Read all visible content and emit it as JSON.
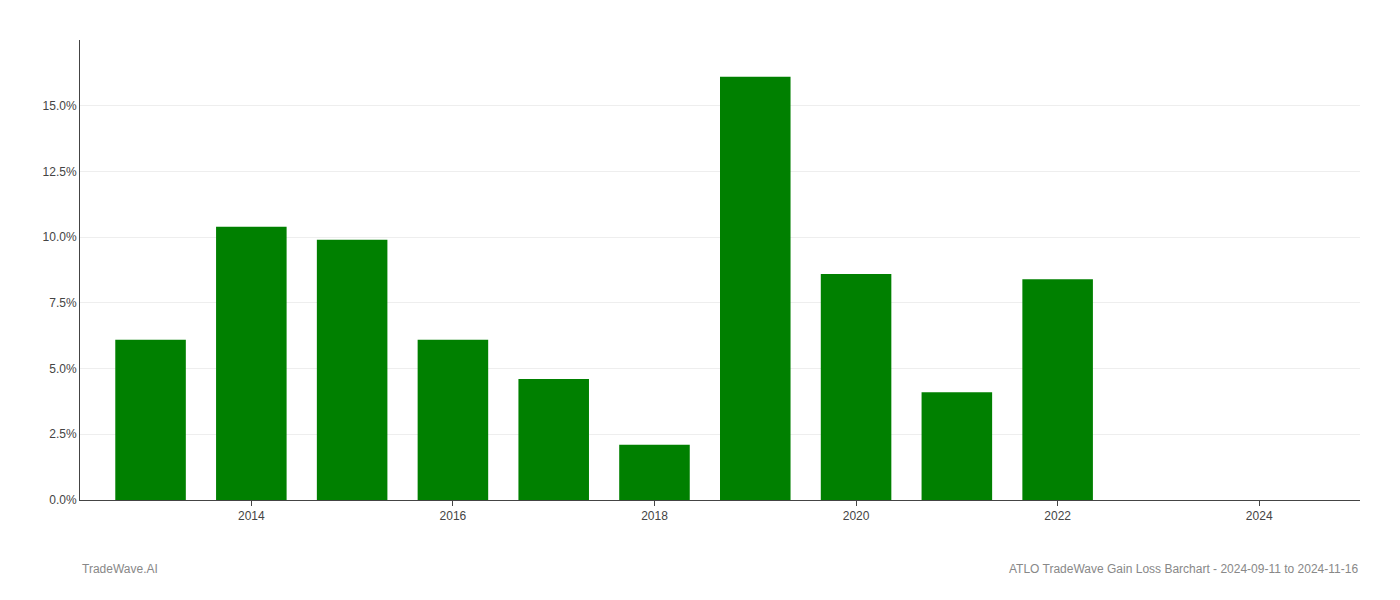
{
  "chart_data": {
    "type": "bar",
    "x": [
      2013,
      2014,
      2015,
      2016,
      2017,
      2018,
      2019,
      2020,
      2021,
      2022
    ],
    "values": [
      0.061,
      0.104,
      0.099,
      0.061,
      0.046,
      0.021,
      0.161,
      0.086,
      0.041,
      0.084
    ],
    "color": "#008000",
    "xlim": [
      2012.3,
      2025.0
    ],
    "xticks": [
      2014,
      2016,
      2018,
      2020,
      2022,
      2024
    ],
    "ylim": [
      0,
      0.175
    ],
    "yticks": [
      {
        "value": 0.0,
        "label": "0.0%"
      },
      {
        "value": 0.025,
        "label": "2.5%"
      },
      {
        "value": 0.05,
        "label": "5.0%"
      },
      {
        "value": 0.075,
        "label": "7.5%"
      },
      {
        "value": 0.1,
        "label": "10.0%"
      },
      {
        "value": 0.125,
        "label": "12.5%"
      },
      {
        "value": 0.15,
        "label": "15.0%"
      }
    ],
    "grid": "y",
    "annotations": [
      {
        "text": "TradeWave.AI"
      },
      {
        "text": "ATLO TradeWave Gain Loss Barchart - 2024-09-11 to 2024-11-16"
      }
    ]
  }
}
